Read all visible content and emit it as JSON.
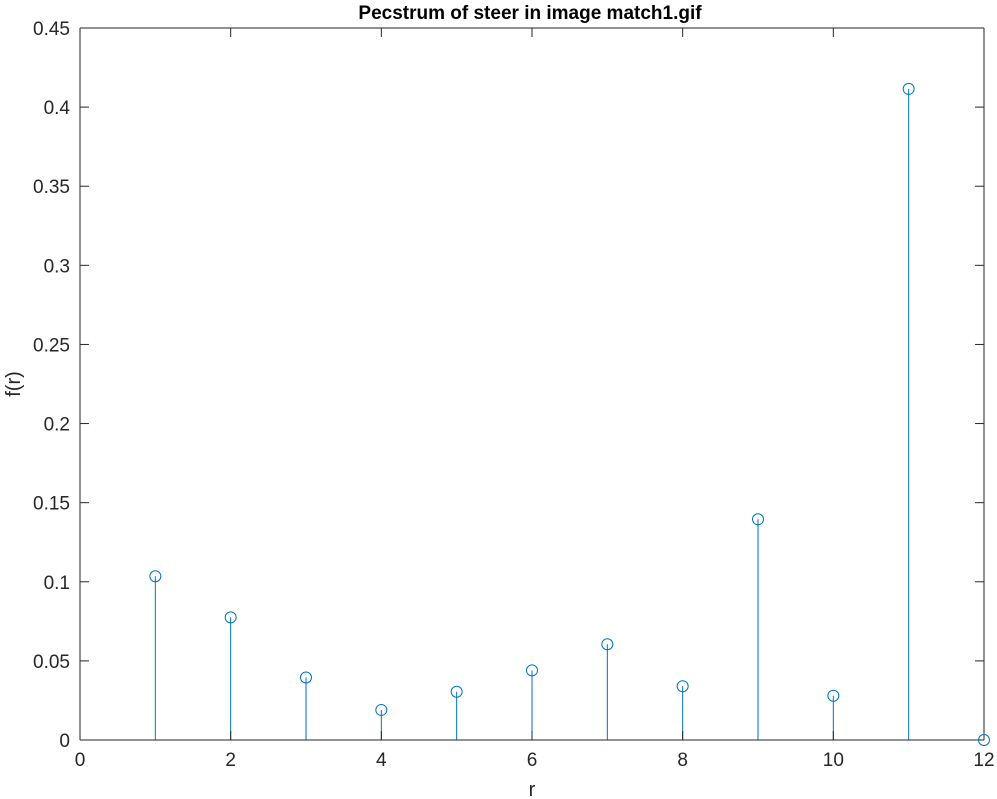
{
  "chart_data": {
    "type": "stem",
    "title": "Pecstrum of steer in image match1.gif",
    "xlabel": "r",
    "ylabel": "f(r)",
    "xlim": [
      0,
      12
    ],
    "ylim": [
      0,
      0.45
    ],
    "x_ticks": [
      "0",
      "2",
      "4",
      "6",
      "8",
      "10",
      "12"
    ],
    "y_ticks": [
      "0",
      "0.05",
      "0.1",
      "0.15",
      "0.2",
      "0.25",
      "0.3",
      "0.35",
      "0.4",
      "0.45"
    ],
    "x": [
      1,
      2,
      3,
      4,
      5,
      6,
      7,
      8,
      9,
      10,
      11,
      12
    ],
    "values": [
      0.1035,
      0.0775,
      0.0395,
      0.019,
      0.0305,
      0.044,
      0.0605,
      0.034,
      0.1395,
      0.028,
      0.4115,
      0.0
    ],
    "marker": "circle",
    "grid": false,
    "box": true,
    "colors": {
      "series": "#0072BD",
      "axis": "#262626",
      "title": "#000000"
    }
  }
}
